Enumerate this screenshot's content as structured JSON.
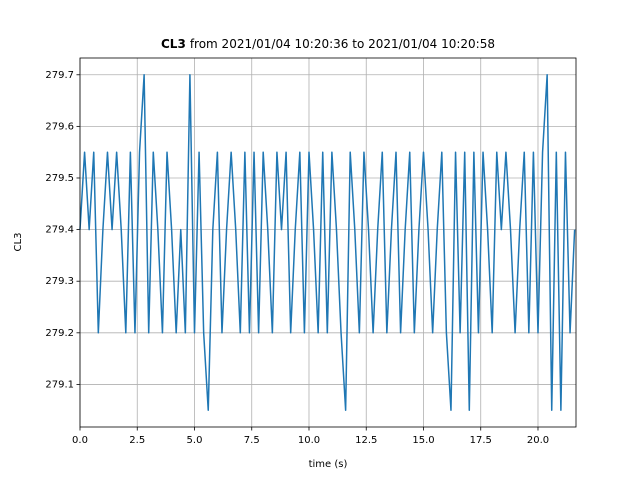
{
  "chart_data": {
    "type": "line",
    "title_bold": "CL3",
    "title": "from 2021/01/04 10:20:36 to 2021/01/04 10:20:58",
    "xlabel": "time (s)",
    "ylabel": "CL3",
    "grid": true,
    "xlim": [
      0,
      21.66
    ],
    "ylim": [
      279.0175,
      279.7325
    ],
    "xticks": [
      {
        "value": 0,
        "label": "0.0"
      },
      2.5,
      {
        "value": 5,
        "label": "5.0"
      },
      7.5,
      {
        "value": 10,
        "label": "10.0"
      },
      12.5,
      {
        "value": 15,
        "label": "15.0"
      },
      17.5,
      {
        "value": 20,
        "label": "20.0"
      }
    ],
    "yticks": [
      279.1,
      279.2,
      279.3,
      279.4,
      279.5,
      279.6,
      279.7
    ],
    "x": [
      0.0,
      0.2,
      0.4,
      0.6,
      0.8,
      1.0,
      1.2,
      1.4,
      1.6,
      1.8,
      2.0,
      2.2,
      2.4,
      2.6,
      2.8,
      3.0,
      3.2,
      3.4,
      3.6,
      3.8,
      4.0,
      4.2,
      4.4,
      4.6,
      4.8,
      5.0,
      5.2,
      5.4,
      5.6,
      5.8,
      6.0,
      6.2,
      6.4,
      6.6,
      6.8,
      7.0,
      7.2,
      7.4,
      7.6,
      7.8,
      8.0,
      8.2,
      8.4,
      8.6,
      8.8,
      9.0,
      9.2,
      9.4,
      9.6,
      9.8,
      10.0,
      10.2,
      10.4,
      10.6,
      10.8,
      11.0,
      11.2,
      11.4,
      11.6,
      11.8,
      12.0,
      12.2,
      12.4,
      12.6,
      12.8,
      13.0,
      13.2,
      13.4,
      13.6,
      13.8,
      14.0,
      14.2,
      14.4,
      14.6,
      14.8,
      15.0,
      15.2,
      15.4,
      15.6,
      15.8,
      16.0,
      16.2,
      16.4,
      16.6,
      16.8,
      17.0,
      17.2,
      17.4,
      17.6,
      17.8,
      18.0,
      18.2,
      18.4,
      18.6,
      18.8,
      19.0,
      19.2,
      19.4,
      19.6,
      19.8,
      20.0,
      20.2,
      20.4,
      20.6,
      20.8,
      21.0,
      21.2,
      21.4,
      21.6
    ],
    "series": [
      {
        "color": "#1f77b4",
        "values": [
          279.4,
          279.55,
          279.4,
          279.55,
          279.2,
          279.4,
          279.55,
          279.4,
          279.55,
          279.4,
          279.2,
          279.55,
          279.2,
          279.55,
          279.7,
          279.2,
          279.55,
          279.4,
          279.2,
          279.55,
          279.4,
          279.2,
          279.4,
          279.2,
          279.7,
          279.2,
          279.55,
          279.2,
          279.05,
          279.4,
          279.55,
          279.2,
          279.4,
          279.55,
          279.4,
          279.2,
          279.55,
          279.2,
          279.55,
          279.2,
          279.55,
          279.4,
          279.2,
          279.55,
          279.4,
          279.55,
          279.2,
          279.4,
          279.55,
          279.2,
          279.55,
          279.4,
          279.2,
          279.55,
          279.2,
          279.55,
          279.4,
          279.2,
          279.05,
          279.55,
          279.4,
          279.2,
          279.55,
          279.4,
          279.2,
          279.4,
          279.55,
          279.2,
          279.4,
          279.55,
          279.2,
          279.4,
          279.55,
          279.2,
          279.4,
          279.55,
          279.4,
          279.2,
          279.4,
          279.55,
          279.2,
          279.05,
          279.55,
          279.2,
          279.55,
          279.05,
          279.55,
          279.2,
          279.55,
          279.4,
          279.2,
          279.55,
          279.4,
          279.55,
          279.4,
          279.2,
          279.4,
          279.55,
          279.2,
          279.55,
          279.2,
          279.55,
          279.7,
          279.05,
          279.55,
          279.05,
          279.55,
          279.2,
          279.4
        ]
      }
    ]
  }
}
